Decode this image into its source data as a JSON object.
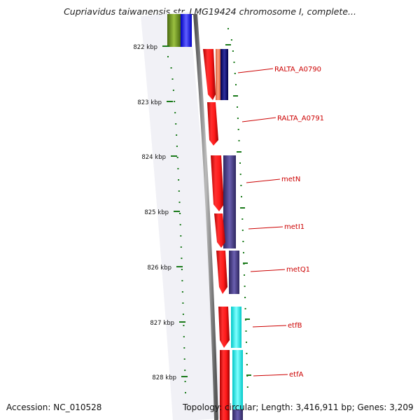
{
  "title": "Cupriavidus taiwanensis str. LMG19424 chromosome I, complete...",
  "footer": {
    "accession": "Accession: NC_010528",
    "summary": "Topology: circular; Length: 3,416,911 bp; Genes: 3,209"
  },
  "colors": {
    "backbone": "#808080",
    "tick": "#1a7a1a",
    "label_line": "#cc0000",
    "label_text": "#cc0000"
  },
  "scale_ticks": [
    {
      "label": "822 kbp"
    },
    {
      "label": "823 kbp"
    },
    {
      "label": "824 kbp"
    },
    {
      "label": "825 kbp"
    },
    {
      "label": "826 kbp"
    },
    {
      "label": "827 kbp"
    },
    {
      "label": "828 kbp"
    }
  ],
  "gene_labels": [
    {
      "label": "RALTA_A0790"
    },
    {
      "label": "RALTA_A0791"
    },
    {
      "label": "metN"
    },
    {
      "label": "metI1"
    },
    {
      "label": "metQ1"
    },
    {
      "label": "etfB"
    },
    {
      "label": "etfA"
    }
  ],
  "feature_tracks": {
    "cds_color": "#ff0000",
    "cog_colors": [
      "#6b8e23",
      "#0000ff",
      "#ff7f50",
      "#000080",
      "#483d8b",
      "#00ffff",
      "#6a5acd"
    ]
  }
}
